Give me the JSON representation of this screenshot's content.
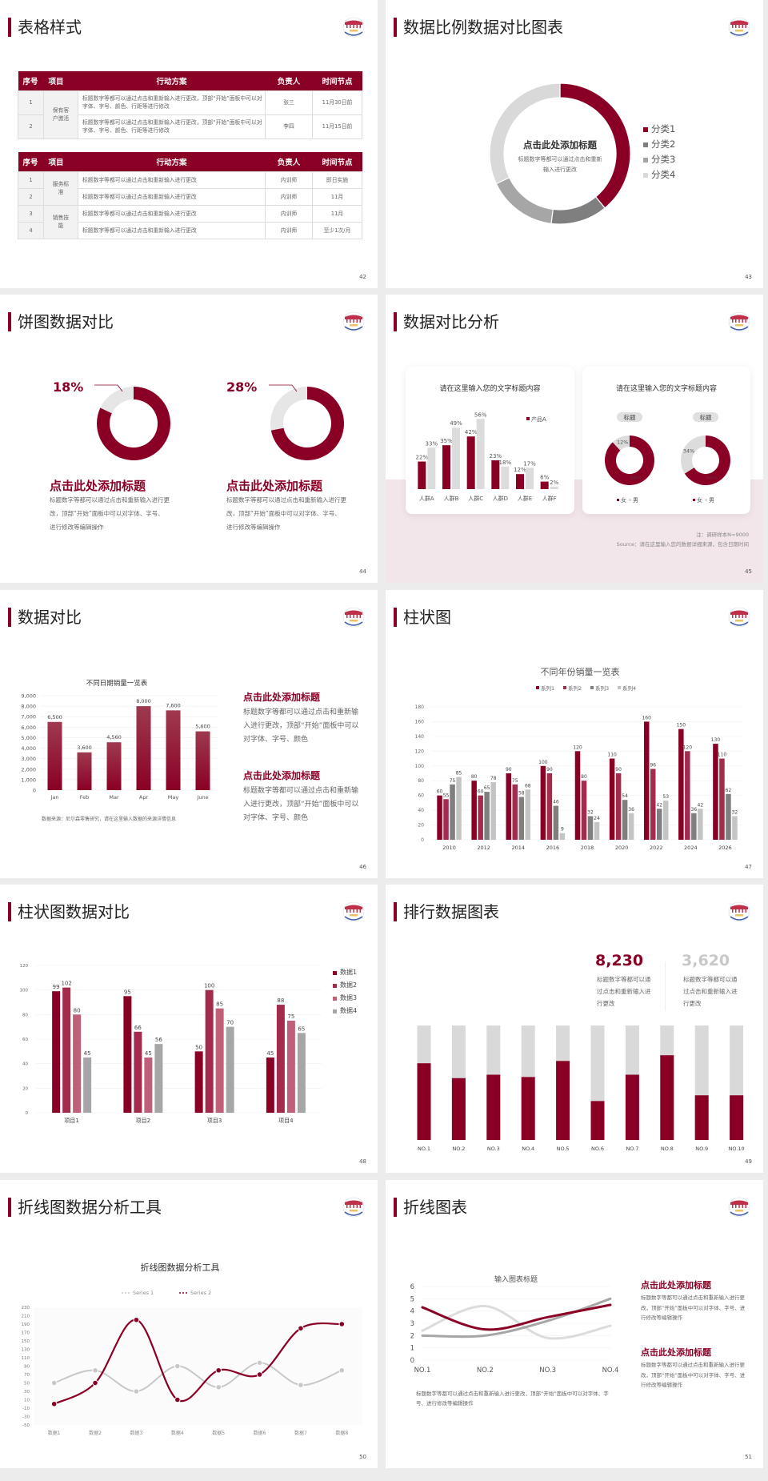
{
  "colors": {
    "brand": "#8a0025",
    "brand2": "#a32c4d",
    "brand3": "#c06078",
    "gray_dark": "#7f7f7f",
    "gray_mid": "#a6a6a6",
    "gray_light": "#d9d9d9",
    "pink_bg": "#f3e6ea"
  },
  "logo": "school-emblem",
  "slides": {
    "s42": {
      "title": "表格样式",
      "page": "42",
      "tables": [
        {
          "headers": [
            "序号",
            "项目",
            "行动方案",
            "负责人",
            "时间节点"
          ],
          "groups": [
            {
              "project": "保有客户激活",
              "rows": [
                {
                  "no": "1",
                  "plan": "标题数字等都可以通过点击和重新输入进行更改，顶部“开始”面板中可以对字体、字号、颜色、行距等进行修改",
                  "owner": "张三",
                  "time": "11月30日前"
                },
                {
                  "no": "2",
                  "plan": "标题数字等都可以通过点击和重新输入进行更改，顶部“开始”面板中可以对字体、字号、颜色、行距等进行修改",
                  "owner": "李四",
                  "time": "11月15日前"
                }
              ]
            }
          ]
        },
        {
          "headers": [
            "序号",
            "项目",
            "行动方案",
            "负责人",
            "时间节点"
          ],
          "groups": [
            {
              "project": "服务标准",
              "rows": [
                {
                  "no": "1",
                  "plan": "标题数字等都可以通过点击和重新输入进行更改",
                  "owner": "内训师",
                  "time": "即日实施"
                },
                {
                  "no": "2",
                  "plan": "标题数字等都可以通过点击和重新输入进行更改",
                  "owner": "内训师",
                  "time": "11月"
                }
              ]
            },
            {
              "project": "销售技能",
              "rows": [
                {
                  "no": "3",
                  "plan": "标题数字等都可以通过点击和重新输入进行更改",
                  "owner": "内训师",
                  "time": "11月"
                },
                {
                  "no": "4",
                  "plan": "标题数字等都可以通过点击和重新输入进行更改",
                  "owner": "内训师",
                  "time": "至少1次/月"
                }
              ]
            }
          ]
        }
      ]
    },
    "s43": {
      "title": "数据比例数据对比图表",
      "page": "43",
      "center_title": "点击此处添加标题",
      "center_text": "标题数字等都可以通过点击和重新输入进行更改"
    },
    "s44": {
      "title": "饼图数据对比",
      "page": "44",
      "items": [
        {
          "title": "点击此处添加标题",
          "text": "标题数字等都可以通过点击和重新输入进行更改，顶部“开始”面板中可以对字体、字号、进行修改等编辑操作"
        },
        {
          "title": "点击此处添加标题",
          "text": "标题数字等都可以通过点击和重新输入进行更改，顶部“开始”面板中可以对字体、字号、进行修改等编辑操作"
        }
      ]
    },
    "s45": {
      "title": "数据对比分析",
      "page": "45",
      "card1_title": "请在这里输入您的文字标题内容",
      "card2_title": "请在这里输入您的文字标题内容",
      "note": "注：调研样本N=9000",
      "source": "Source：请在这里输入您的数据详细来源，包含日期时间"
    },
    "s46": {
      "title": "数据对比",
      "page": "46",
      "source": "数据来源：尼尔森零售研究，请在这里输入数据的来源详情信息",
      "blocks": [
        {
          "title": "点击此处添加标题",
          "text": "标题数字等都可以通过点击和重新输入进行更改，顶部“开始”面板中可以对字体、字号、颜色"
        },
        {
          "title": "点击此处添加标题",
          "text": "标题数字等都可以通过点击和重新输入进行更改，顶部“开始”面板中可以对字体、字号、颜色"
        }
      ]
    },
    "s47": {
      "title": "柱状图",
      "page": "47"
    },
    "s48": {
      "title": "柱状图数据对比",
      "page": "48"
    },
    "s49": {
      "title": "排行数据图表",
      "page": "49",
      "stats": [
        {
          "value": "8,230",
          "text": "标题数字等都可以通过点击和重新输入进行更改"
        },
        {
          "value": "3,620",
          "text": "标题数字等都可以通过点击和重新输入进行更改"
        }
      ]
    },
    "s50": {
      "title": "折线图数据分析工具",
      "page": "50"
    },
    "s51": {
      "title": "折线图表",
      "page": "51",
      "caption": "标题数字等都可以通过点击和重新输入进行更改，顶部“开始”面板中可以对字体、字号、进行修改等编辑操作",
      "blocks": [
        {
          "title": "点击此处添加标题",
          "text": "标题数字等都可以通过点击和重新输入进行更改，顶部“开始”面板中可以对字体、字号、进行修改等编辑操作"
        },
        {
          "title": "点击此处添加标题",
          "text": "标题数字等都可以通过点击和重新输入进行更改，顶部“开始”面板中可以对字体、字号、进行修改等编辑操作"
        }
      ]
    }
  },
  "chart_data": [
    {
      "type": "pie",
      "variant": "donut",
      "categories": [
        "分类1",
        "分类2",
        "分类3",
        "分类4"
      ],
      "values": [
        39,
        13,
        16,
        32
      ],
      "legend": "right"
    },
    {
      "type": "pie",
      "variant": "donut",
      "labels": [
        "18%",
        "28%"
      ],
      "values": [
        18,
        28
      ]
    },
    {
      "type": "bar",
      "categories": [
        "人群A",
        "人群B",
        "人群C",
        "人群D",
        "人群E",
        "人群F"
      ],
      "series": [
        {
          "name": "产品A",
          "values": [
            22,
            35,
            42,
            23,
            12,
            6
          ]
        },
        {
          "values": [
            33,
            49,
            56,
            18,
            17,
            2
          ]
        }
      ],
      "data_labels": [
        "%"
      ],
      "ylim": [
        0,
        60
      ]
    },
    {
      "type": "pie",
      "variant": "donut",
      "badges": [
        "标题",
        "标题"
      ],
      "legend": [
        "女",
        "男"
      ],
      "donuts": [
        {
          "female": 88,
          "male": 12,
          "labels": [
            "88%",
            "12%"
          ]
        },
        {
          "female": 66,
          "male": 34,
          "labels": [
            "66%",
            "34%"
          ]
        }
      ]
    },
    {
      "type": "bar",
      "title": "不同日期销量一览表",
      "categories": [
        "Jan",
        "Feb",
        "Mar",
        "Apr",
        "May",
        "June"
      ],
      "values": [
        6500,
        3600,
        4560,
        8000,
        7600,
        5600
      ],
      "labels": [
        "6,500",
        "3,600",
        "4,560",
        "8,000",
        "7,600",
        "5,600"
      ],
      "yticks": [
        "0",
        "1,000",
        "2,000",
        "3,000",
        "4,000",
        "5,000",
        "6,000",
        "7,000",
        "8,000",
        "9,000"
      ],
      "ylim": [
        0,
        9000
      ]
    },
    {
      "type": "bar",
      "title": "不同年份销量一览表",
      "categories": [
        "2010",
        "2012",
        "2014",
        "2016",
        "2018",
        "2020",
        "2022",
        "2024",
        "2026"
      ],
      "series": [
        {
          "name": "系列1",
          "values": [
            60,
            80,
            90,
            100,
            120,
            110,
            160,
            150,
            130
          ]
        },
        {
          "name": "系列2",
          "values": [
            55,
            60,
            75,
            90,
            80,
            90,
            96,
            120,
            110
          ]
        },
        {
          "name": "系列3",
          "values": [
            75,
            65,
            58,
            46,
            32,
            54,
            42,
            36,
            62
          ]
        },
        {
          "name": "系列4",
          "values": [
            85,
            78,
            68,
            9,
            24,
            36,
            53,
            42,
            32
          ]
        }
      ],
      "yticks": [
        "0",
        "20",
        "40",
        "60",
        "80",
        "100",
        "120",
        "140",
        "160",
        "180"
      ],
      "ylim": [
        0,
        180
      ],
      "legend": "top"
    },
    {
      "type": "bar",
      "categories": [
        "项目1",
        "项目2",
        "项目3",
        "项目4"
      ],
      "series": [
        {
          "name": "数据1",
          "values": [
            99,
            95,
            50,
            45
          ]
        },
        {
          "name": "数据2",
          "values": [
            102,
            66,
            100,
            88
          ]
        },
        {
          "name": "数据3",
          "values": [
            80,
            45,
            85,
            75
          ]
        },
        {
          "name": "数据4",
          "values": [
            45,
            56,
            70,
            65
          ]
        }
      ],
      "yticks": [
        "0",
        "20",
        "40",
        "60",
        "80",
        "100",
        "120"
      ],
      "ylim": [
        0,
        120
      ],
      "legend": "right"
    },
    {
      "type": "bar",
      "variant": "stacked-percent",
      "categories": [
        "NO.1",
        "NO.2",
        "NO.3",
        "NO.4",
        "NO.5",
        "NO.6",
        "NO.7",
        "NO.8",
        "NO.9",
        "NO.10"
      ],
      "values": [
        0.67,
        0.54,
        0.57,
        0.55,
        0.69,
        0.34,
        0.57,
        0.74,
        0.39,
        0.39
      ]
    },
    {
      "type": "line",
      "smooth": true,
      "title": "折线图数据分析工具",
      "categories": [
        "数据1",
        "数据2",
        "数据3",
        "数据4",
        "数据5",
        "数据6",
        "数据7",
        "数据8"
      ],
      "series": [
        {
          "name": "Series 1",
          "values": [
            50,
            80,
            30,
            90,
            40,
            98,
            45,
            80
          ]
        },
        {
          "name": "Series 2",
          "values": [
            0,
            50,
            200,
            10,
            80,
            70,
            180,
            190
          ]
        }
      ],
      "yticks": [
        "-50",
        "-30",
        "-10",
        "10",
        "30",
        "50",
        "70",
        "90",
        "110",
        "130",
        "150",
        "170",
        "190",
        "210",
        "230"
      ],
      "ylim": [
        -50,
        230
      ],
      "legend": "top"
    },
    {
      "type": "line",
      "smooth": true,
      "title": "输入图表标题",
      "categories": [
        "NO.1",
        "NO.2",
        "NO.3",
        "NO.4"
      ],
      "series": [
        {
          "values": [
            4.3,
            2.5,
            3.5,
            4.5
          ]
        },
        {
          "values": [
            2.4,
            4.4,
            1.8,
            2.8
          ]
        },
        {
          "values": [
            2.0,
            2.0,
            3.2,
            5.0
          ]
        }
      ],
      "yticks": [
        "0",
        "1",
        "2",
        "3",
        "4",
        "5",
        "6"
      ],
      "ylim": [
        0,
        6
      ]
    }
  ]
}
